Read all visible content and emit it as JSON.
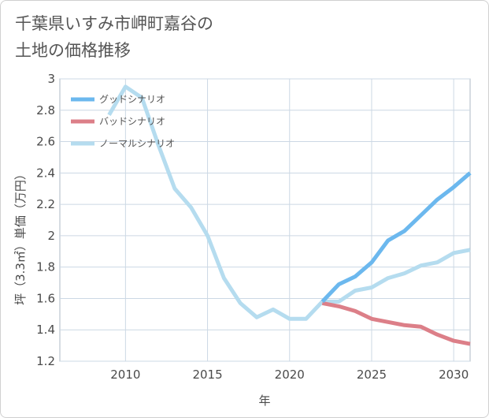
{
  "title_line1": "千葉県いすみ市岬町嘉谷の",
  "title_line2": "土地の価格推移",
  "chart_data": {
    "type": "line",
    "xlabel": "年",
    "ylabel": "坪（3.3㎡）単価（万円）",
    "xlim": [
      2006,
      2031
    ],
    "ylim": [
      1.2,
      3.0
    ],
    "xticks": [
      2010,
      2015,
      2020,
      2025,
      2030
    ],
    "yticks": [
      1.2,
      1.4,
      1.6,
      1.8,
      2.0,
      2.2,
      2.4,
      2.6,
      2.8,
      3.0
    ],
    "ytick_labels": [
      "1.2",
      "1.4",
      "1.6",
      "1.8",
      "2",
      "2.2",
      "2.4",
      "2.6",
      "2.8",
      "3"
    ],
    "xtick_labels": [
      "2010",
      "2015",
      "2020",
      "2025",
      "2030"
    ],
    "grid": true,
    "legend_position": "top-left",
    "series": [
      {
        "name": "グッドシナリオ",
        "color": "#6cb8ee",
        "x": [
          2022,
          2023,
          2024,
          2025,
          2026,
          2027,
          2028,
          2029,
          2030,
          2031
        ],
        "y": [
          1.58,
          1.69,
          1.74,
          1.83,
          1.97,
          2.03,
          2.13,
          2.23,
          2.31,
          2.4
        ]
      },
      {
        "name": "バッドシナリオ",
        "color": "#dc7f88",
        "x": [
          2022,
          2023,
          2024,
          2025,
          2026,
          2027,
          2028,
          2029,
          2030,
          2031
        ],
        "y": [
          1.57,
          1.55,
          1.52,
          1.47,
          1.45,
          1.43,
          1.42,
          1.37,
          1.33,
          1.31
        ]
      },
      {
        "name": "ノーマルシナリオ",
        "color": "#b5dcef",
        "x": [
          2009,
          2010,
          2011,
          2012,
          2013,
          2014,
          2015,
          2016,
          2017,
          2018,
          2019,
          2020,
          2021,
          2022,
          2023,
          2024,
          2025,
          2026,
          2027,
          2028,
          2029,
          2030,
          2031
        ],
        "y": [
          2.77,
          2.95,
          2.88,
          2.58,
          2.3,
          2.18,
          2.0,
          1.73,
          1.57,
          1.48,
          1.53,
          1.47,
          1.47,
          1.58,
          1.58,
          1.65,
          1.67,
          1.73,
          1.76,
          1.81,
          1.83,
          1.89,
          1.91
        ]
      }
    ]
  }
}
